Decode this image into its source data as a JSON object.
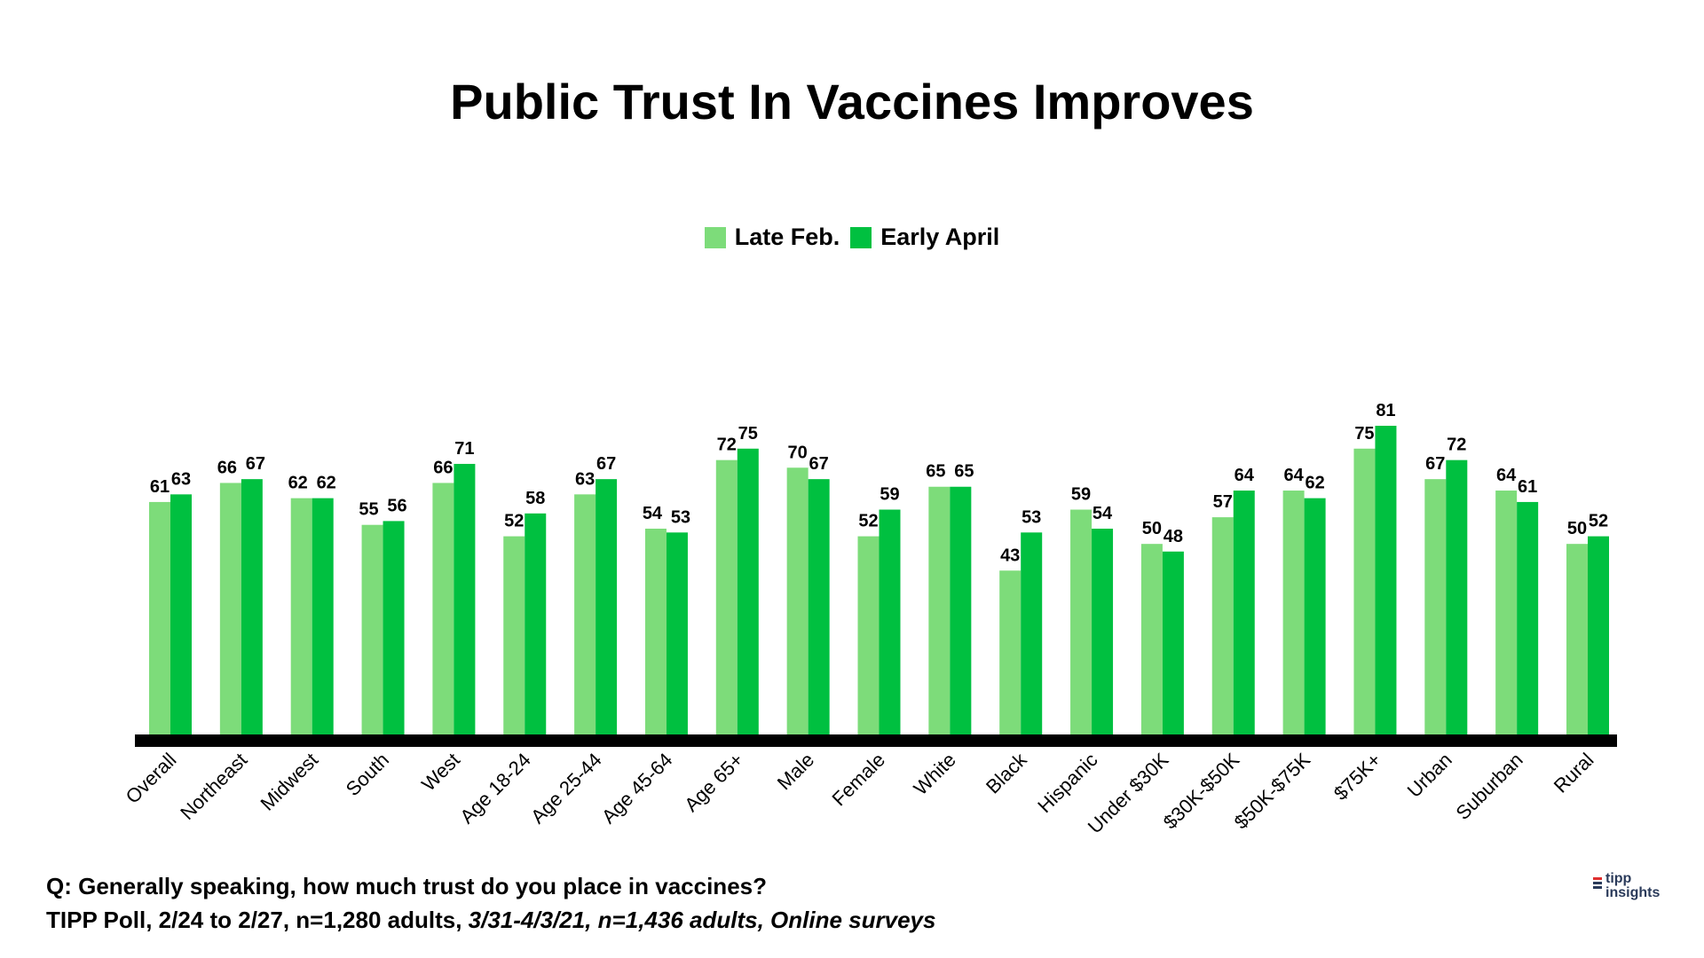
{
  "chart_data": {
    "type": "bar",
    "title": "Public Trust In Vaccines Improves",
    "categories": [
      "Overall",
      "Northeast",
      "Midwest",
      "South",
      "West",
      "Age 18-24",
      "Age 25-44",
      "Age 45-64",
      "Age 65+",
      "Male",
      "Female",
      "White",
      "Black",
      "Hispanic",
      "Under $30K",
      "$30K-$50K",
      "$50K-$75K",
      "$75K+",
      "Urban",
      "Suburban",
      "Rural"
    ],
    "series": [
      {
        "name": "Late Feb.",
        "color": "#7ddc7a",
        "values": [
          61,
          66,
          62,
          55,
          66,
          52,
          63,
          54,
          72,
          70,
          52,
          65,
          43,
          59,
          50,
          57,
          64,
          75,
          67,
          64,
          50
        ]
      },
      {
        "name": "Early April",
        "color": "#00c040",
        "values": [
          63,
          67,
          62,
          56,
          71,
          58,
          67,
          53,
          75,
          67,
          59,
          65,
          53,
          54,
          48,
          64,
          62,
          81,
          72,
          61,
          52
        ]
      }
    ],
    "ylim": [
      0,
      85
    ],
    "xlabel": "",
    "ylabel": "",
    "legend": "top-center",
    "grid": false
  },
  "footer": {
    "question": "Q:  Generally speaking, how much trust do you place in vaccines?",
    "source_main": "TIPP Poll, 2/24 to 2/27, n=1,280 adults, ",
    "source_italic": "3/31-4/3/21, n=1,436 adults, Online surveys"
  },
  "brand": {
    "line1": "tipp",
    "line2": "insights",
    "mark_colors": [
      "#e03030",
      "#2a3a5a",
      "#2a3a5a"
    ]
  }
}
